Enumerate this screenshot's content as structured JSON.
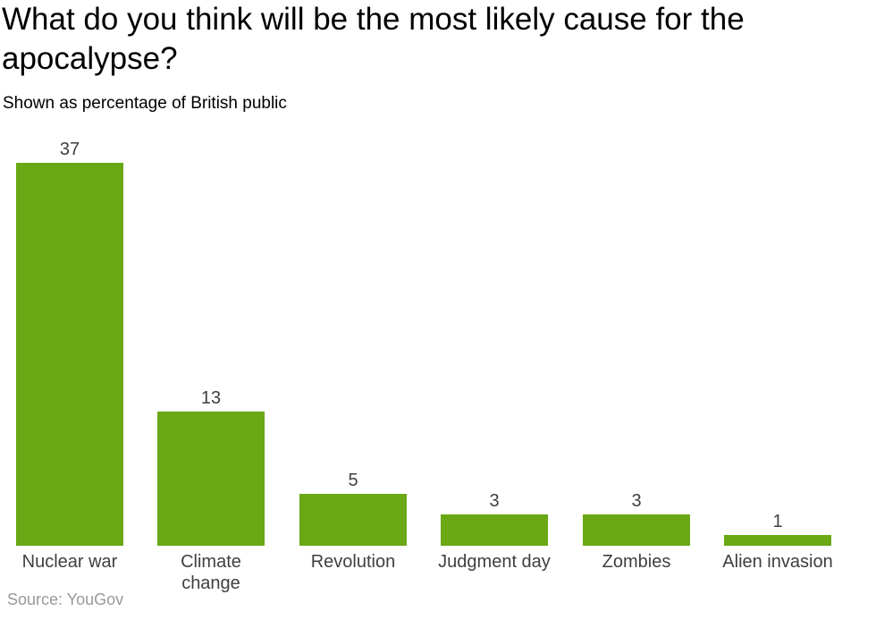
{
  "header": {
    "title": "What do you think will be the most likely cause for the apocalypse?",
    "subtitle": "Shown as percentage of British public"
  },
  "footer": {
    "source": "Source: YouGov"
  },
  "colors": {
    "bar": "#6aa816",
    "title_text": "#000000",
    "label_text": "#3f3f3f",
    "source_text": "#999999",
    "background": "#ffffff"
  },
  "chart_data": {
    "type": "bar",
    "title": "What do you think will be the most likely cause for the apocalypse?",
    "subtitle": "Shown as percentage of British public",
    "source": "Source: YouGov",
    "categories": [
      "Nuclear war",
      "Climate change",
      "Revolution",
      "Judgment day",
      "Zombies",
      "Alien invasion"
    ],
    "values": [
      37,
      13,
      5,
      3,
      3,
      1
    ],
    "value_labels": [
      "37",
      "13",
      "5",
      "3",
      "3",
      "1"
    ],
    "ylim": [
      0,
      37
    ],
    "grid": false,
    "legend": "none",
    "axis_lines": "none",
    "bar_color": "#6aa816",
    "orientation": "vertical"
  }
}
